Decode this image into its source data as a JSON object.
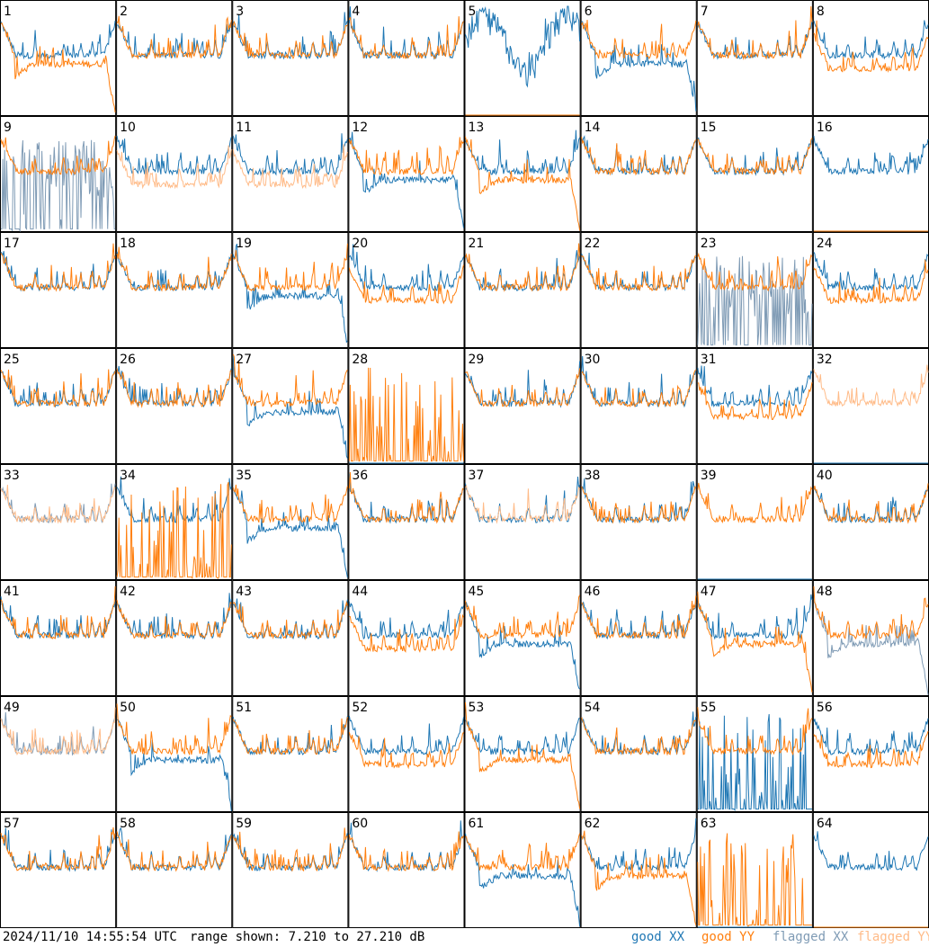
{
  "footer": {
    "timestamp": "2024/11/10 14:55:54 UTC",
    "range": "range shown: 7.210 to 27.210 dB"
  },
  "legend": [
    {
      "label": "good XX",
      "color": "#1f77b4"
    },
    {
      "label": "good YY",
      "color": "#ff7f0e"
    },
    {
      "label": "flagged XX",
      "color": "#7f9bb5"
    },
    {
      "label": "flagged YY",
      "color": "#ffbb88"
    }
  ],
  "chart_data": {
    "type": "line",
    "title": "",
    "xlabel": "",
    "ylabel": "",
    "ylim": [
      7.21,
      27.21
    ],
    "unit": "dB",
    "grid_layout": "8x8",
    "panels": [
      {
        "label": "1",
        "xx": "good",
        "yy": "good",
        "shape": {
          "xx": "normal",
          "yy": "drop"
        }
      },
      {
        "label": "2",
        "xx": "good",
        "yy": "good",
        "shape": {
          "xx": "normal",
          "yy": "normal"
        }
      },
      {
        "label": "3",
        "xx": "good",
        "yy": "good",
        "shape": {
          "xx": "normal",
          "yy": "normal"
        }
      },
      {
        "label": "4",
        "xx": "good",
        "yy": "good",
        "shape": {
          "xx": "normal",
          "yy": "normal"
        }
      },
      {
        "label": "5",
        "xx": "good",
        "yy": "good",
        "shape": {
          "xx": "noisy",
          "yy": "flat"
        }
      },
      {
        "label": "6",
        "xx": "good",
        "yy": "good",
        "shape": {
          "xx": "drop",
          "yy": "normal"
        }
      },
      {
        "label": "7",
        "xx": "good",
        "yy": "good",
        "shape": {
          "xx": "normal",
          "yy": "normal"
        }
      },
      {
        "label": "8",
        "xx": "good",
        "yy": "good",
        "shape": {
          "xx": "normal",
          "yy": "low"
        }
      },
      {
        "label": "9",
        "xx": "flagged",
        "yy": "good",
        "shape": {
          "xx": "spiky",
          "yy": "normal"
        }
      },
      {
        "label": "10",
        "xx": "good",
        "yy": "flagged",
        "shape": {
          "xx": "normal",
          "yy": "low"
        }
      },
      {
        "label": "11",
        "xx": "good",
        "yy": "flagged",
        "shape": {
          "xx": "normal",
          "yy": "low"
        }
      },
      {
        "label": "12",
        "xx": "good",
        "yy": "good",
        "shape": {
          "xx": "drop",
          "yy": "normal"
        }
      },
      {
        "label": "13",
        "xx": "good",
        "yy": "good",
        "shape": {
          "xx": "normal",
          "yy": "drop"
        }
      },
      {
        "label": "14",
        "xx": "good",
        "yy": "good",
        "shape": {
          "xx": "normal",
          "yy": "normal"
        }
      },
      {
        "label": "15",
        "xx": "good",
        "yy": "good",
        "shape": {
          "xx": "normal",
          "yy": "normal"
        }
      },
      {
        "label": "16",
        "xx": "good",
        "yy": "good",
        "shape": {
          "xx": "normal",
          "yy": "flat"
        }
      },
      {
        "label": "17",
        "xx": "good",
        "yy": "good",
        "shape": {
          "xx": "normal",
          "yy": "normal"
        }
      },
      {
        "label": "18",
        "xx": "good",
        "yy": "good",
        "shape": {
          "xx": "normal",
          "yy": "normal"
        }
      },
      {
        "label": "19",
        "xx": "good",
        "yy": "good",
        "shape": {
          "xx": "drop",
          "yy": "normal"
        }
      },
      {
        "label": "20",
        "xx": "good",
        "yy": "good",
        "shape": {
          "xx": "normal",
          "yy": "low"
        }
      },
      {
        "label": "21",
        "xx": "good",
        "yy": "good",
        "shape": {
          "xx": "normal",
          "yy": "normal"
        }
      },
      {
        "label": "22",
        "xx": "good",
        "yy": "good",
        "shape": {
          "xx": "normal",
          "yy": "normal"
        }
      },
      {
        "label": "23",
        "xx": "flagged",
        "yy": "good",
        "shape": {
          "xx": "spiky",
          "yy": "normal"
        }
      },
      {
        "label": "24",
        "xx": "good",
        "yy": "good",
        "shape": {
          "xx": "normal",
          "yy": "low"
        }
      },
      {
        "label": "25",
        "xx": "good",
        "yy": "good",
        "shape": {
          "xx": "normal",
          "yy": "normal"
        }
      },
      {
        "label": "26",
        "xx": "good",
        "yy": "good",
        "shape": {
          "xx": "normal",
          "yy": "normal"
        }
      },
      {
        "label": "27",
        "xx": "good",
        "yy": "good",
        "shape": {
          "xx": "drop",
          "yy": "normal"
        }
      },
      {
        "label": "28",
        "xx": "good",
        "yy": "good",
        "shape": {
          "xx": "flat",
          "yy": "spiky"
        }
      },
      {
        "label": "29",
        "xx": "good",
        "yy": "good",
        "shape": {
          "xx": "normal",
          "yy": "normal"
        }
      },
      {
        "label": "30",
        "xx": "good",
        "yy": "good",
        "shape": {
          "xx": "normal",
          "yy": "normal"
        }
      },
      {
        "label": "31",
        "xx": "good",
        "yy": "good",
        "shape": {
          "xx": "normal",
          "yy": "low"
        }
      },
      {
        "label": "32",
        "xx": "good",
        "yy": "flagged",
        "shape": {
          "xx": "flat",
          "yy": "normal"
        }
      },
      {
        "label": "33",
        "xx": "flagged",
        "yy": "flagged",
        "shape": {
          "xx": "normal",
          "yy": "normal"
        }
      },
      {
        "label": "34",
        "xx": "good",
        "yy": "good",
        "shape": {
          "xx": "normal",
          "yy": "spiky"
        }
      },
      {
        "label": "35",
        "xx": "good",
        "yy": "good",
        "shape": {
          "xx": "drop",
          "yy": "normal"
        }
      },
      {
        "label": "36",
        "xx": "good",
        "yy": "good",
        "shape": {
          "xx": "normal",
          "yy": "normal"
        }
      },
      {
        "label": "37",
        "xx": "good",
        "yy": "flagged",
        "shape": {
          "xx": "normal",
          "yy": "normal"
        }
      },
      {
        "label": "38",
        "xx": "good",
        "yy": "good",
        "shape": {
          "xx": "normal",
          "yy": "normal"
        }
      },
      {
        "label": "39",
        "xx": "good",
        "yy": "good",
        "shape": {
          "xx": "flat",
          "yy": "normal"
        }
      },
      {
        "label": "40",
        "xx": "good",
        "yy": "good",
        "shape": {
          "xx": "normal",
          "yy": "normal"
        }
      },
      {
        "label": "41",
        "xx": "good",
        "yy": "good",
        "shape": {
          "xx": "normal",
          "yy": "normal"
        }
      },
      {
        "label": "42",
        "xx": "good",
        "yy": "good",
        "shape": {
          "xx": "normal",
          "yy": "normal"
        }
      },
      {
        "label": "43",
        "xx": "good",
        "yy": "good",
        "shape": {
          "xx": "normal",
          "yy": "normal"
        }
      },
      {
        "label": "44",
        "xx": "good",
        "yy": "good",
        "shape": {
          "xx": "normal",
          "yy": "low"
        }
      },
      {
        "label": "45",
        "xx": "good",
        "yy": "good",
        "shape": {
          "xx": "drop",
          "yy": "normal"
        }
      },
      {
        "label": "46",
        "xx": "good",
        "yy": "good",
        "shape": {
          "xx": "normal",
          "yy": "normal"
        }
      },
      {
        "label": "47",
        "xx": "good",
        "yy": "good",
        "shape": {
          "xx": "normal",
          "yy": "drop"
        }
      },
      {
        "label": "48",
        "xx": "flagged",
        "yy": "good",
        "shape": {
          "xx": "drop",
          "yy": "normal"
        }
      },
      {
        "label": "49",
        "xx": "flagged",
        "yy": "flagged",
        "shape": {
          "xx": "normal",
          "yy": "normal"
        }
      },
      {
        "label": "50",
        "xx": "good",
        "yy": "good",
        "shape": {
          "xx": "drop",
          "yy": "normal"
        }
      },
      {
        "label": "51",
        "xx": "good",
        "yy": "good",
        "shape": {
          "xx": "normal",
          "yy": "normal"
        }
      },
      {
        "label": "52",
        "xx": "good",
        "yy": "good",
        "shape": {
          "xx": "normal",
          "yy": "low"
        }
      },
      {
        "label": "53",
        "xx": "good",
        "yy": "good",
        "shape": {
          "xx": "normal",
          "yy": "drop"
        }
      },
      {
        "label": "54",
        "xx": "good",
        "yy": "good",
        "shape": {
          "xx": "normal",
          "yy": "normal"
        }
      },
      {
        "label": "55",
        "xx": "good",
        "yy": "good",
        "shape": {
          "xx": "spiky",
          "yy": "normal"
        }
      },
      {
        "label": "56",
        "xx": "good",
        "yy": "good",
        "shape": {
          "xx": "normal",
          "yy": "low"
        }
      },
      {
        "label": "57",
        "xx": "good",
        "yy": "good",
        "shape": {
          "xx": "normal",
          "yy": "normal"
        }
      },
      {
        "label": "58",
        "xx": "good",
        "yy": "good",
        "shape": {
          "xx": "normal",
          "yy": "normal"
        }
      },
      {
        "label": "59",
        "xx": "good",
        "yy": "good",
        "shape": {
          "xx": "normal",
          "yy": "normal"
        }
      },
      {
        "label": "60",
        "xx": "good",
        "yy": "good",
        "shape": {
          "xx": "normal",
          "yy": "normal"
        }
      },
      {
        "label": "61",
        "xx": "good",
        "yy": "good",
        "shape": {
          "xx": "drop",
          "yy": "normal"
        }
      },
      {
        "label": "62",
        "xx": "good",
        "yy": "good",
        "shape": {
          "xx": "normal",
          "yy": "drop"
        }
      },
      {
        "label": "63",
        "xx": "good",
        "yy": "good",
        "shape": {
          "xx": "flat",
          "yy": "spiky"
        }
      },
      {
        "label": "64",
        "xx": "good",
        "yy": "good",
        "shape": {
          "xx": "normal",
          "yy": "flat"
        }
      }
    ]
  }
}
